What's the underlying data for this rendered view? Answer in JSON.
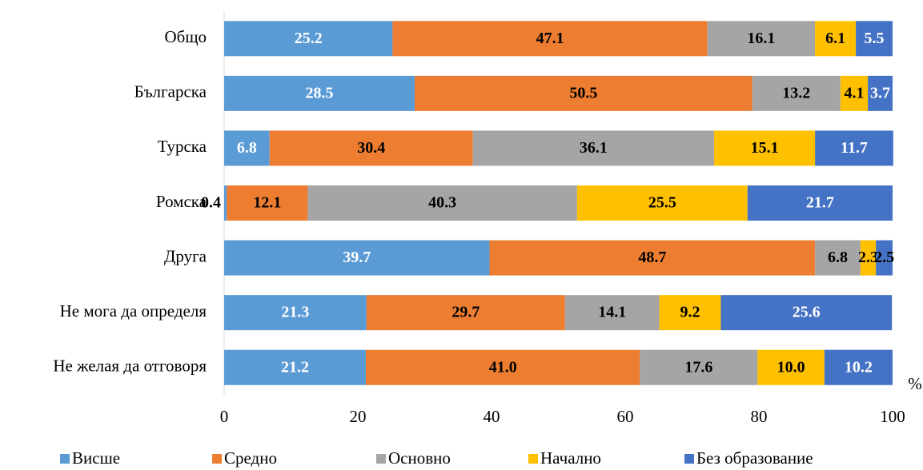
{
  "chart_data": {
    "type": "stacked_bar_horizontal",
    "categories": [
      "Общо",
      "Българска",
      "Турска",
      "Ромска",
      "Друга",
      "Не мога да определя",
      "Не желая да отговоря"
    ],
    "series": [
      {
        "name": "Висше",
        "color": "#5b9bd5",
        "label_color": "#ffffff",
        "values": [
          25.2,
          28.5,
          6.8,
          0.4,
          39.7,
          21.3,
          21.2
        ],
        "value_labels": [
          "25.2",
          "28.5",
          "6.8",
          "0.4",
          "39.7",
          "21.3",
          "21.2"
        ]
      },
      {
        "name": "Средно",
        "color": "#ed7d31",
        "label_color": "#000000",
        "values": [
          47.1,
          50.5,
          30.4,
          12.1,
          48.7,
          29.7,
          41.0
        ],
        "value_labels": [
          "47.1",
          "50.5",
          "30.4",
          "12.1",
          "48.7",
          "29.7",
          "41.0"
        ]
      },
      {
        "name": "Основно",
        "color": "#a5a5a5",
        "label_color": "#000000",
        "values": [
          16.1,
          13.2,
          36.1,
          40.3,
          6.8,
          14.1,
          17.6
        ],
        "value_labels": [
          "16.1",
          "13.2",
          "36.1",
          "40.3",
          "6.8",
          "14.1",
          "17.6"
        ]
      },
      {
        "name": "Начално",
        "color": "#ffc000",
        "label_color": "#000000",
        "values": [
          6.1,
          4.1,
          15.1,
          25.5,
          2.3,
          9.2,
          10.0
        ],
        "value_labels": [
          "6.1",
          "4.1",
          "15.1",
          "25.5",
          "2.3",
          "9.2",
          "10.0"
        ]
      },
      {
        "name": "Без образование",
        "color": "#4472c4",
        "label_color": "#ffffff",
        "values": [
          5.5,
          3.7,
          11.7,
          21.7,
          2.5,
          25.6,
          10.2
        ],
        "value_labels": [
          "5.5",
          "3.7",
          "11.7",
          "21.7",
          "2.5",
          "25.6",
          "10.2"
        ]
      }
    ],
    "xlabel": "%",
    "xlim": [
      0,
      100
    ],
    "xticks": [
      0,
      20,
      40,
      60,
      80,
      100
    ],
    "grid": false,
    "legend": "bottom"
  }
}
